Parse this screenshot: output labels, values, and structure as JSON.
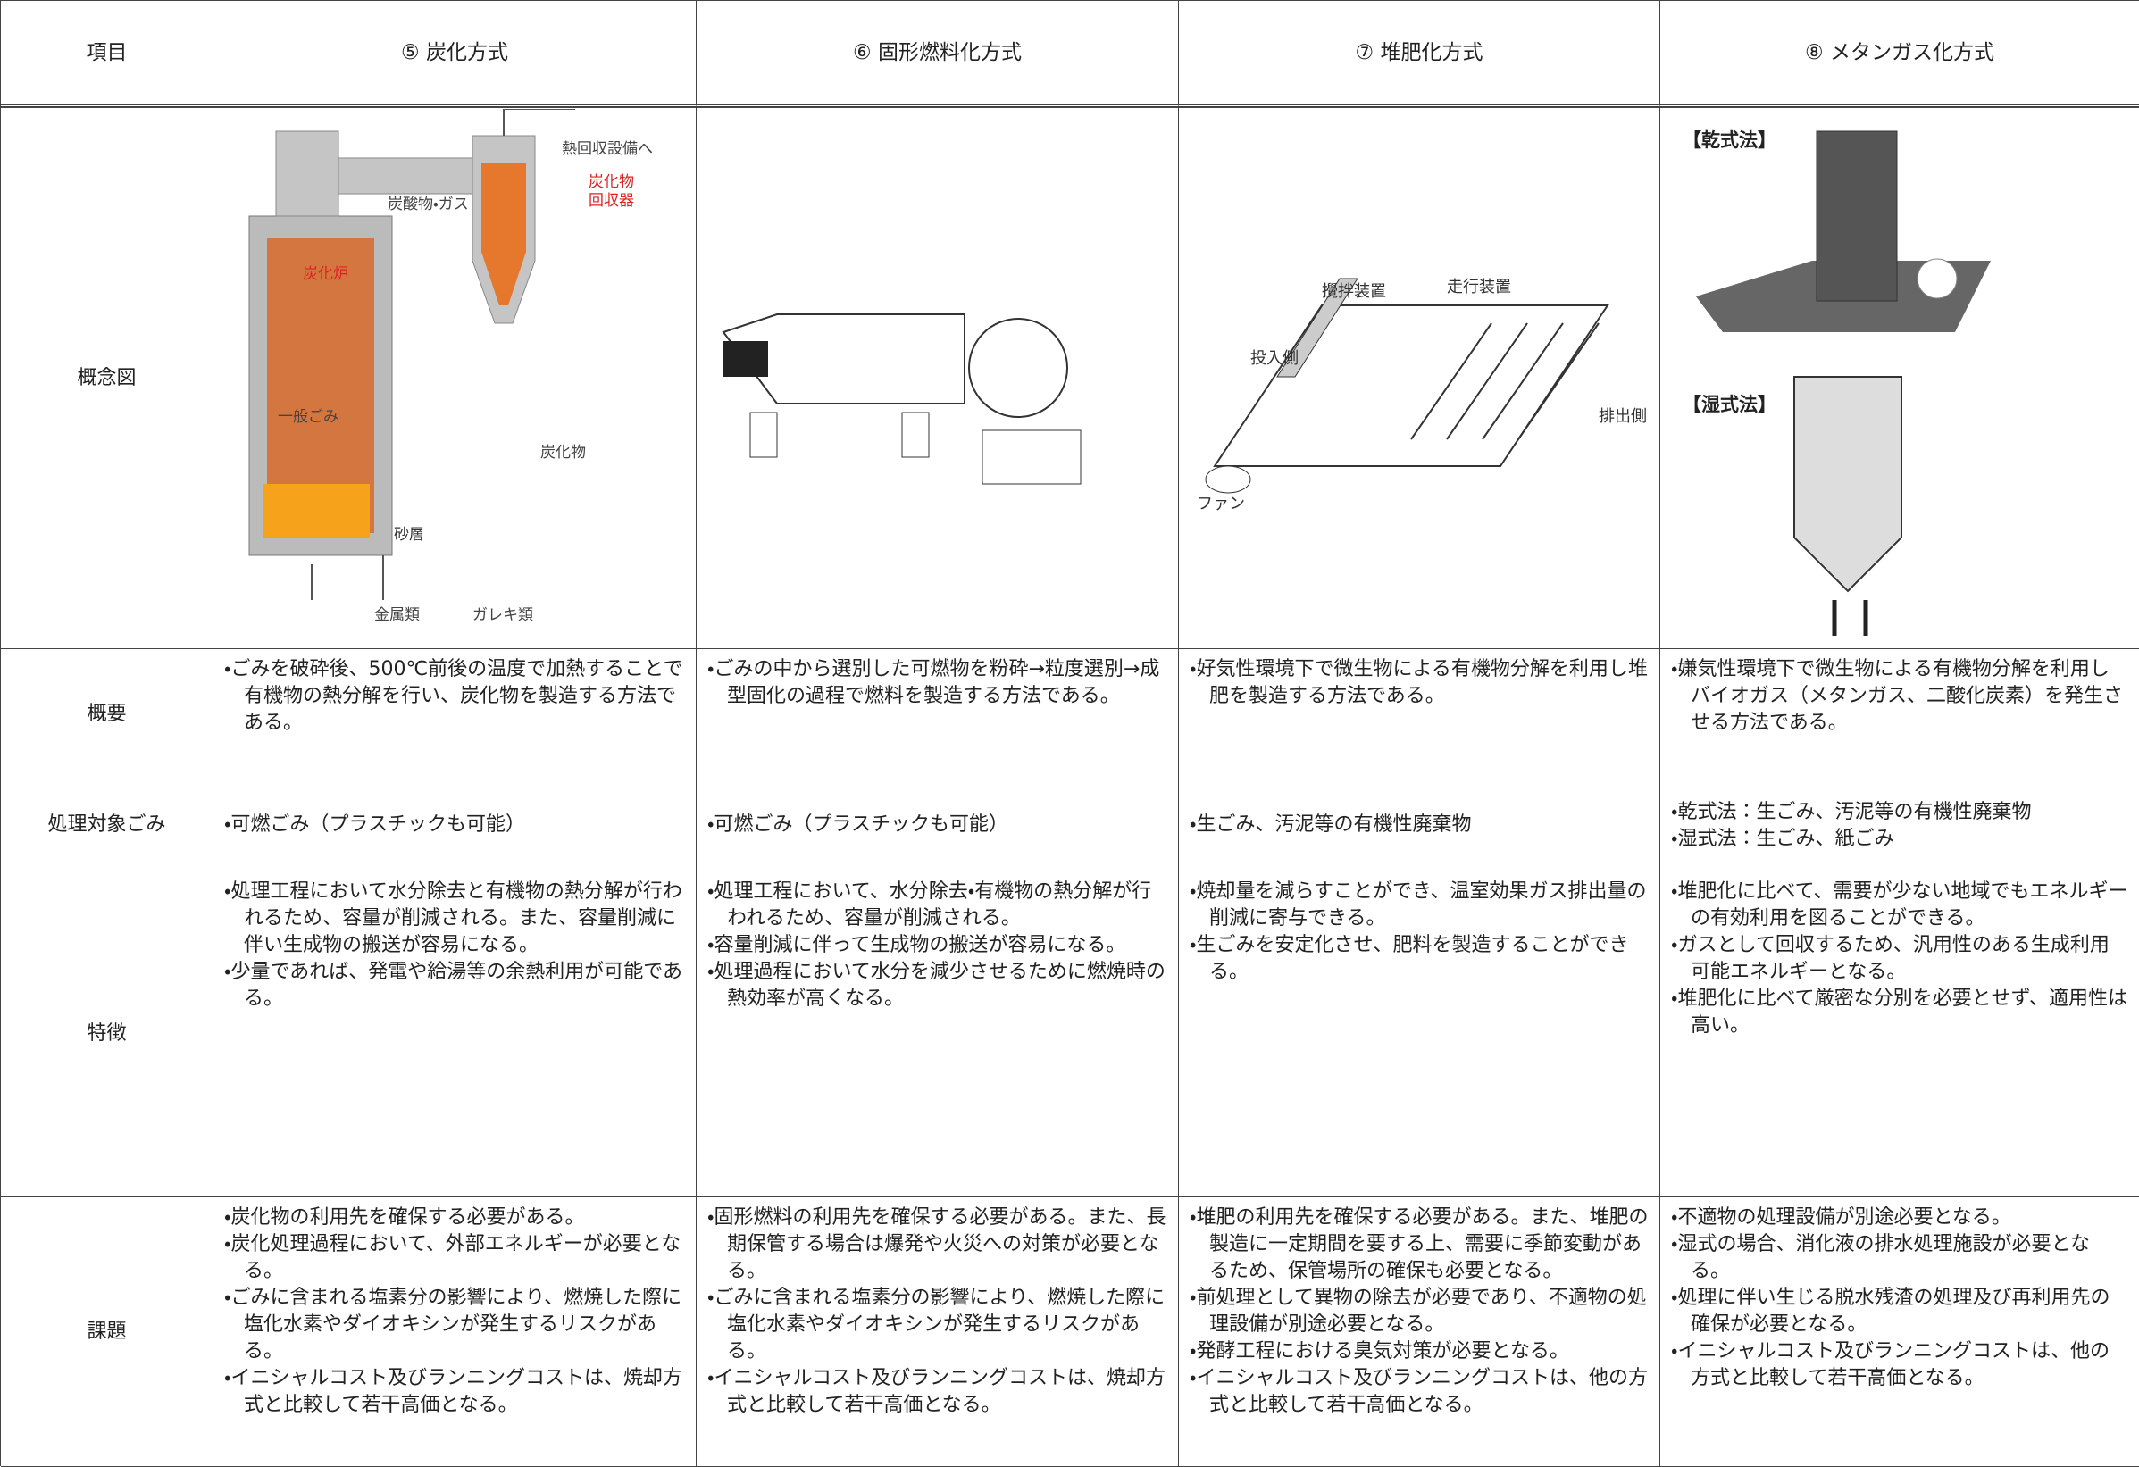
{
  "header": {
    "cells": [
      "項目",
      "⑤ 炭化方式",
      "⑥ 固形燃料化方式",
      "⑦ 堆肥化方式",
      "⑧ メタンガス化方式"
    ]
  },
  "concept": {
    "label": "概念図",
    "carbonization_labels": [
      "熱回収設備へ",
      "炭化物",
      "回収器",
      "炭酸物・ガス",
      "炭化炉",
      "一般ごみ",
      "炭化物",
      "砂層",
      "金属類",
      "ガレキ類"
    ],
    "composting_labels": [
      "攪拌装置",
      "走行装置",
      "投入側",
      "排出側",
      "ファン"
    ],
    "methane_labels": [
      "【乾式法】",
      "【湿式法】"
    ]
  },
  "rows": [
    {
      "label": "概要",
      "cells": [
        [
          "・ごみを破砕後、500℃前後の温度で加熱することで有機物の熱分解を行い、炭化物を製造する方法である。"
        ],
        [
          "・ごみの中から選別した可燃物を粉砕→粒度選別→成型固化の過程で燃料を製造する方法である。"
        ],
        [
          "・好気性環境下で微生物による有機物分解を利用し堆肥を製造する方法である。"
        ],
        [
          "・嫌気性環境下で微生物による有機物分解を利用しバイオガス（メタンガス、二酸化炭素）を発生させる方法である。"
        ]
      ]
    },
    {
      "label": "処理対象ごみ",
      "cells": [
        [
          "・可燃ごみ（プラスチックも可能）"
        ],
        [
          "・可燃ごみ（プラスチックも可能）"
        ],
        [
          "・生ごみ、汚泥等の有機性廃棄物"
        ],
        [
          "・乾式法：生ごみ、汚泥等の有機性廃棄物",
          "・湿式法：生ごみ、紙ごみ"
        ]
      ]
    },
    {
      "label": "特徴",
      "cells": [
        [
          "・処理工程において水分除去と有機物の熱分解が行われるため、容量が削減される。また、容量削減に伴い生成物の搬送が容易になる。",
          "・少量であれば、発電や給湯等の余熱利用が可能である。"
        ],
        [
          "・処理工程において、水分除去・有機物の熱分解が行われるため、容量が削減される。",
          "・容量削減に伴って生成物の搬送が容易になる。",
          "・処理過程において水分を減少させるために燃焼時の熱効率が高くなる。"
        ],
        [
          "・焼却量を減らすことができ、温室効果ガス排出量の削減に寄与できる。",
          "・生ごみを安定化させ、肥料を製造することができる。"
        ],
        [
          "・堆肥化に比べて、需要が少ない地域でもエネルギーの有効利用を図ることができる。",
          "・ガスとして回収するため、汎用性のある生成利用可能エネルギーとなる。",
          "・堆肥化に比べて厳密な分別を必要とせず、適用性は高い。"
        ]
      ]
    },
    {
      "label": "課題",
      "cells": [
        [
          "・炭化物の利用先を確保する必要がある。",
          "・炭化処理過程において、外部エネルギーが必要となる。",
          "・ごみに含まれる塩素分の影響により、燃焼した際に塩化水素やダイオキシンが発生するリスクがある。",
          "・イニシャルコスト及びランニングコストは、焼却方式と比較して若干高価となる。"
        ],
        [
          "・固形燃料の利用先を確保する必要がある。また、長期保管する場合は爆発や火災への対策が必要となる。",
          "・ごみに含まれる塩素分の影響により、燃焼した際に塩化水素やダイオキシンが発生するリスクがある。",
          "・イニシャルコスト及びランニングコストは、焼却方式と比較して若干高価となる。"
        ],
        [
          "・堆肥の利用先を確保する必要がある。また、堆肥の製造に一定期間を要する上、需要に季節変動があるため、保管場所の確保も必要となる。",
          "・前処理として異物の除去が必要であり、不適物の処理設備が別途必要となる。",
          "・発酵工程における臭気対策が必要となる。",
          "・イニシャルコスト及びランニングコストは、他の方式と比較して若干高価となる。"
        ],
        [
          "・不適物の処理設備が別途必要となる。",
          "・湿式の場合、消化液の排水処理施設が必要となる。",
          "・処理に伴い生じる脱水残渣の処理及び再利用先の確保が必要となる。",
          "・イニシャルコスト及びランニングコストは、他の方式と比較して若干高価となる。"
        ]
      ]
    }
  ]
}
